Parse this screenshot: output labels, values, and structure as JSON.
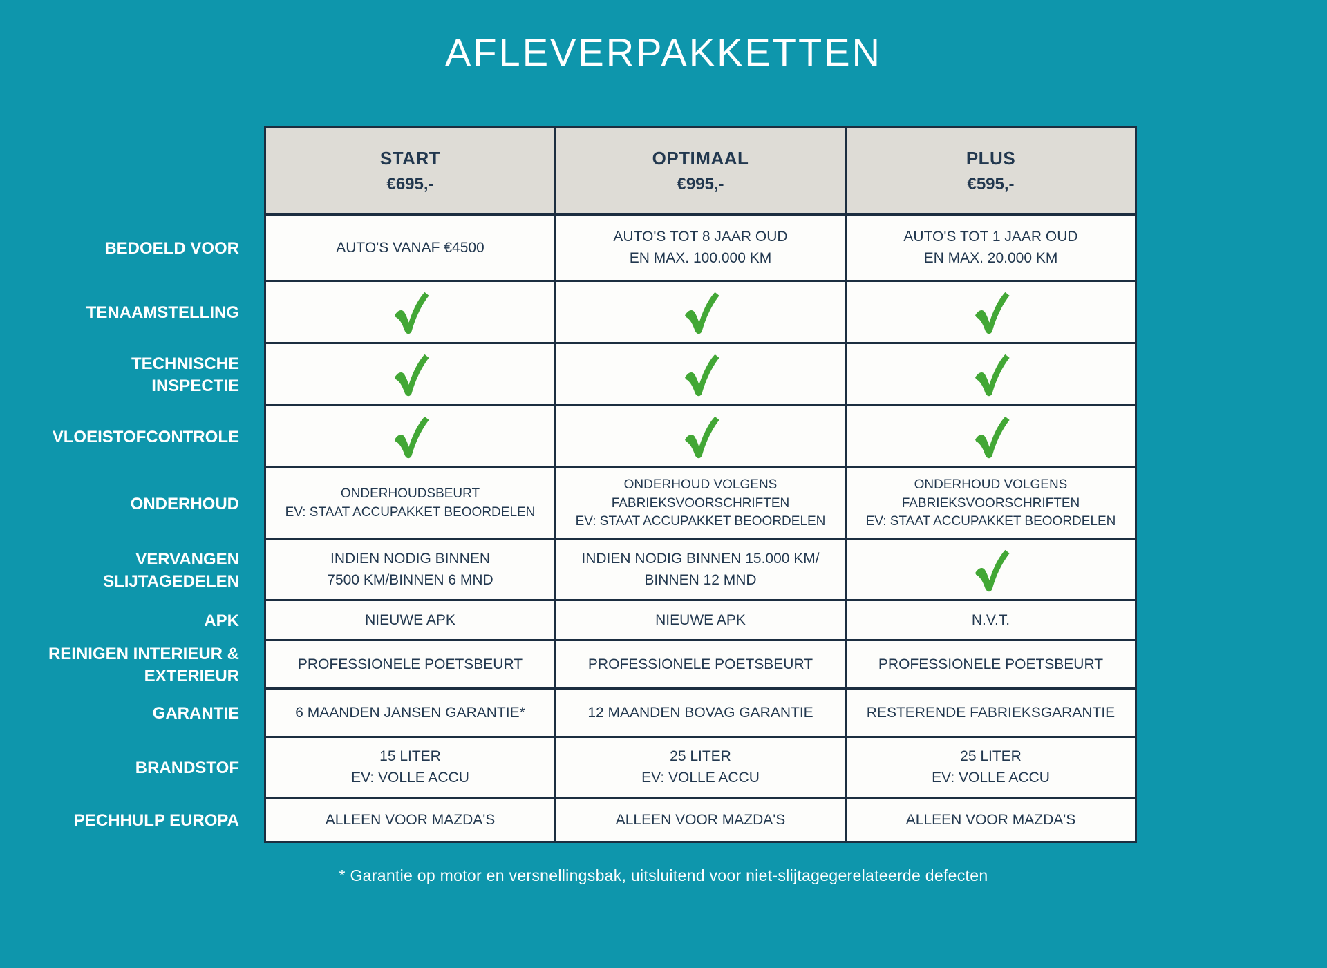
{
  "page": {
    "title": "AFLEVERPAKKETTEN",
    "footnote": "* Garantie op motor en versnellingsbak, uitsluitend voor niet-slijtagegerelateerde defecten"
  },
  "colors": {
    "background": "#0E96AC",
    "header_background": "#DEDCD6",
    "text_navy": "#22384F",
    "border_navy": "#1C2E40",
    "cell_background": "#FDFDFB",
    "check_green": "#42A735",
    "label_white": "#FFFFFF"
  },
  "icons": {
    "check": "green-checkmark-icon"
  },
  "table": {
    "columns": [
      {
        "name": "START",
        "price": "€695,-"
      },
      {
        "name": "OPTIMAAL",
        "price": "€995,-"
      },
      {
        "name": "PLUS",
        "price": "€595,-"
      }
    ],
    "rows": [
      {
        "label_lines": [
          "BEDOELD VOOR"
        ],
        "cells": [
          {
            "type": "text",
            "lines": [
              "AUTO'S VANAF €4500"
            ]
          },
          {
            "type": "text",
            "lines": [
              "AUTO'S TOT 8 JAAR OUD",
              "EN MAX. 100.000 KM"
            ]
          },
          {
            "type": "text",
            "lines": [
              "AUTO'S TOT 1 JAAR OUD",
              "EN MAX. 20.000 KM"
            ]
          }
        ]
      },
      {
        "label_lines": [
          "TENAAMSTELLING"
        ],
        "cells": [
          {
            "type": "check"
          },
          {
            "type": "check"
          },
          {
            "type": "check"
          }
        ]
      },
      {
        "label_lines": [
          "TECHNISCHE",
          "INSPECTIE"
        ],
        "cells": [
          {
            "type": "check"
          },
          {
            "type": "check"
          },
          {
            "type": "check"
          }
        ]
      },
      {
        "label_lines": [
          "VLOEISTOFCONTROLE"
        ],
        "cells": [
          {
            "type": "check"
          },
          {
            "type": "check"
          },
          {
            "type": "check"
          }
        ]
      },
      {
        "label_lines": [
          "ONDERHOUD"
        ],
        "small": true,
        "cells": [
          {
            "type": "text",
            "lines": [
              "ONDERHOUDSBEURT",
              "EV: STAAT ACCUPAKKET BEOORDELEN"
            ]
          },
          {
            "type": "text",
            "lines": [
              "ONDERHOUD VOLGENS",
              "FABRIEKSVOORSCHRIFTEN",
              "EV: STAAT ACCUPAKKET BEOORDELEN"
            ]
          },
          {
            "type": "text",
            "lines": [
              "ONDERHOUD VOLGENS",
              "FABRIEKSVOORSCHRIFTEN",
              "EV: STAAT ACCUPAKKET BEOORDELEN"
            ]
          }
        ]
      },
      {
        "label_lines": [
          "VERVANGEN",
          "SLIJTAGEDELEN"
        ],
        "cells": [
          {
            "type": "text",
            "lines": [
              "INDIEN NODIG BINNEN",
              "7500 KM/BINNEN 6 MND"
            ]
          },
          {
            "type": "text",
            "lines": [
              "INDIEN NODIG BINNEN 15.000 KM/",
              "BINNEN 12 MND"
            ]
          },
          {
            "type": "check"
          }
        ]
      },
      {
        "label_lines": [
          "APK"
        ],
        "cells": [
          {
            "type": "text",
            "lines": [
              "NIEUWE APK"
            ]
          },
          {
            "type": "text",
            "lines": [
              "NIEUWE APK"
            ]
          },
          {
            "type": "text",
            "lines": [
              "N.V.T."
            ]
          }
        ]
      },
      {
        "label_lines": [
          "REINIGEN INTERIEUR &",
          "EXTERIEUR"
        ],
        "cells": [
          {
            "type": "text",
            "lines": [
              "PROFESSIONELE POETSBEURT"
            ]
          },
          {
            "type": "text",
            "lines": [
              "PROFESSIONELE POETSBEURT"
            ]
          },
          {
            "type": "text",
            "lines": [
              "PROFESSIONELE POETSBEURT"
            ]
          }
        ]
      },
      {
        "label_lines": [
          "GARANTIE"
        ],
        "cells": [
          {
            "type": "text",
            "lines": [
              "6 MAANDEN JANSEN GARANTIE*"
            ]
          },
          {
            "type": "text",
            "lines": [
              "12 MAANDEN BOVAG GARANTIE"
            ]
          },
          {
            "type": "text",
            "lines": [
              "RESTERENDE FABRIEKSGARANTIE"
            ]
          }
        ]
      },
      {
        "label_lines": [
          "BRANDSTOF"
        ],
        "cells": [
          {
            "type": "text",
            "lines": [
              "15 LITER",
              "EV: VOLLE ACCU"
            ]
          },
          {
            "type": "text",
            "lines": [
              "25 LITER",
              "EV: VOLLE ACCU"
            ]
          },
          {
            "type": "text",
            "lines": [
              "25 LITER",
              "EV: VOLLE ACCU"
            ]
          }
        ]
      },
      {
        "label_lines": [
          "PECHHULP EUROPA"
        ],
        "cells": [
          {
            "type": "text",
            "lines": [
              "ALLEEN VOOR MAZDA'S"
            ]
          },
          {
            "type": "text",
            "lines": [
              "ALLEEN VOOR MAZDA'S"
            ]
          },
          {
            "type": "text",
            "lines": [
              "ALLEEN VOOR MAZDA'S"
            ]
          }
        ]
      }
    ]
  }
}
